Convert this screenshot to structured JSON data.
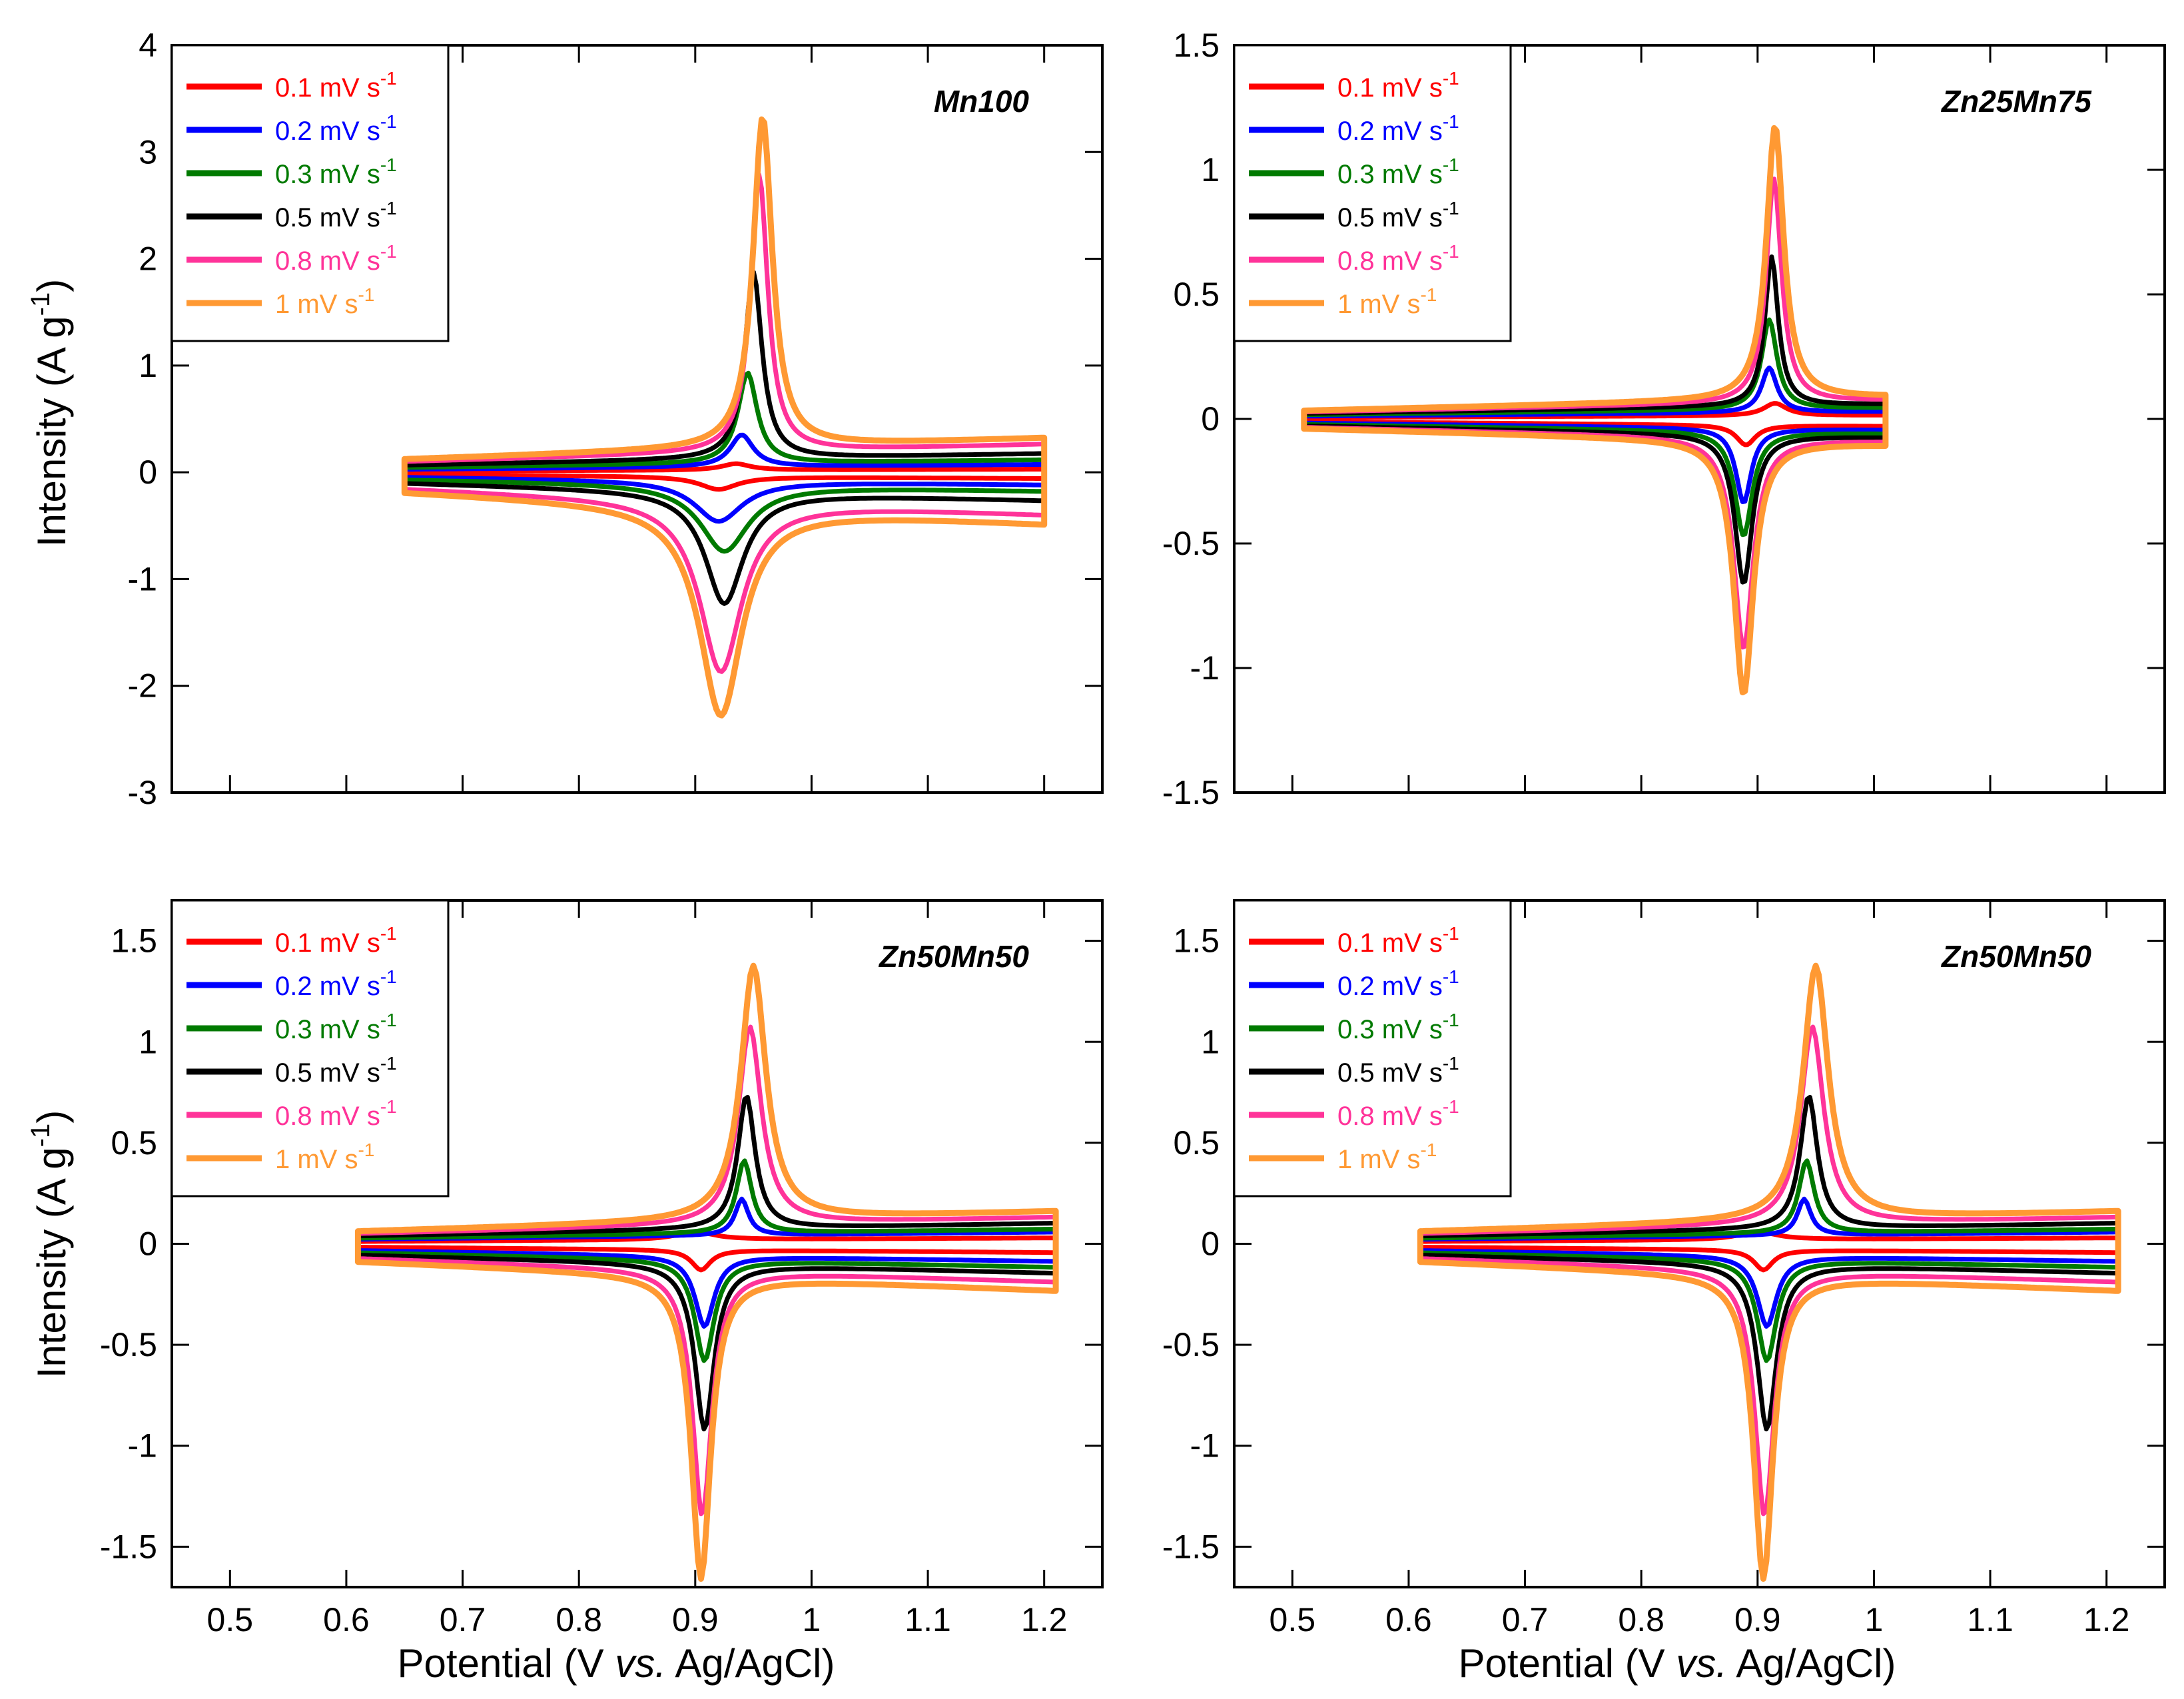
{
  "figure": {
    "xlabel_main": "Potential (V ",
    "xlabel_italic": "vs.",
    "xlabel_tail": " Ag/AgCl)",
    "ylabel_main": "Intensity (A g",
    "ylabel_sup": "-1",
    "ylabel_close": ")"
  },
  "legend_entries": [
    {
      "name": "0.1 mV s",
      "sup": "-1",
      "color": "#ff0000"
    },
    {
      "name": "0.2 mV s",
      "sup": "-1",
      "color": "#0000ff"
    },
    {
      "name": "0.3 mV s",
      "sup": "-1",
      "color": "#007a00"
    },
    {
      "name": "0.5 mV s",
      "sup": "-1",
      "color": "#000000"
    },
    {
      "name": "0.8 mV s",
      "sup": "-1",
      "color": "#ff3399"
    },
    {
      "name": "1 mV s",
      "sup": "-1",
      "color": "#ff9933"
    }
  ],
  "chart_data": [
    {
      "type": "line",
      "title": "Mn100",
      "xlabel": "",
      "ylabel": "Intensity (A g-1)",
      "xlim": [
        0.45,
        1.25
      ],
      "ylim": [
        -3,
        4
      ],
      "yticks": [
        -3,
        -2,
        -1,
        0,
        1,
        2,
        3,
        4
      ],
      "xticks": [
        0.5,
        0.6,
        0.7,
        0.8,
        0.9,
        1.0,
        1.1,
        1.2
      ],
      "legend": "top-left",
      "series": [
        {
          "name": "0.1 mV s-1",
          "xmin": 0.65,
          "xmax": 1.2,
          "anodic": {
            "center": 0.935,
            "height": 0.06,
            "width": 0.015
          },
          "cathodic": {
            "center": 0.92,
            "height": 0.12,
            "width": 0.02
          },
          "anodic_base": 0.02,
          "cathodic_base": -0.04
        },
        {
          "name": "0.2 mV s-1",
          "xmin": 0.65,
          "xmax": 1.2,
          "anodic": {
            "center": 0.94,
            "height": 0.3,
            "width": 0.012
          },
          "cathodic": {
            "center": 0.92,
            "height": 0.38,
            "width": 0.025
          },
          "anodic_base": 0.05,
          "cathodic_base": -0.08
        },
        {
          "name": "0.3 mV s-1",
          "xmin": 0.65,
          "xmax": 1.2,
          "anodic": {
            "center": 0.945,
            "height": 0.85,
            "width": 0.01
          },
          "cathodic": {
            "center": 0.925,
            "height": 0.62,
            "width": 0.025
          },
          "anodic_base": 0.08,
          "cathodic_base": -0.12
        },
        {
          "name": "0.5 mV s-1",
          "xmin": 0.65,
          "xmax": 1.2,
          "anodic": {
            "center": 0.95,
            "height": 1.75,
            "width": 0.009
          },
          "cathodic": {
            "center": 0.925,
            "height": 1.05,
            "width": 0.02
          },
          "anodic_base": 0.12,
          "cathodic_base": -0.18
        },
        {
          "name": "0.8 mV s-1",
          "xmin": 0.65,
          "xmax": 1.2,
          "anodic": {
            "center": 0.955,
            "height": 2.6,
            "width": 0.009
          },
          "cathodic": {
            "center": 0.922,
            "height": 1.6,
            "width": 0.022
          },
          "anodic_base": 0.18,
          "cathodic_base": -0.27
        },
        {
          "name": "1 mV s-1",
          "xmin": 0.65,
          "xmax": 1.2,
          "anodic": {
            "center": 0.958,
            "height": 3.1,
            "width": 0.01
          },
          "cathodic": {
            "center": 0.922,
            "height": 1.95,
            "width": 0.022
          },
          "anodic_base": 0.22,
          "cathodic_base": -0.33
        }
      ]
    },
    {
      "type": "line",
      "title": "Zn25Mn75",
      "xlabel": "",
      "ylabel": "",
      "xlim": [
        0.45,
        1.25
      ],
      "ylim": [
        -1.5,
        1.5
      ],
      "yticks": [
        -1.5,
        -1,
        -0.5,
        0,
        0.5,
        1,
        1.5
      ],
      "xticks": [
        0.5,
        0.6,
        0.7,
        0.8,
        0.9,
        1.0,
        1.1,
        1.2
      ],
      "legend": "top-left",
      "series": [
        {
          "name": "0.1 mV s-1",
          "xmin": 0.51,
          "xmax": 1.01,
          "anodic": {
            "center": 0.915,
            "height": 0.05,
            "width": 0.012
          },
          "cathodic": {
            "center": 0.89,
            "height": 0.08,
            "width": 0.01
          },
          "anodic_base": 0.01,
          "cathodic_base": -0.02
        },
        {
          "name": "0.2 mV s-1",
          "xmin": 0.51,
          "xmax": 1.01,
          "anodic": {
            "center": 0.91,
            "height": 0.18,
            "width": 0.008
          },
          "cathodic": {
            "center": 0.888,
            "height": 0.3,
            "width": 0.008
          },
          "anodic_base": 0.02,
          "cathodic_base": -0.03
        },
        {
          "name": "0.3 mV s-1",
          "xmin": 0.51,
          "xmax": 1.01,
          "anodic": {
            "center": 0.91,
            "height": 0.36,
            "width": 0.008
          },
          "cathodic": {
            "center": 0.888,
            "height": 0.42,
            "width": 0.009
          },
          "anodic_base": 0.03,
          "cathodic_base": -0.04
        },
        {
          "name": "0.5 mV s-1",
          "xmin": 0.51,
          "xmax": 1.01,
          "anodic": {
            "center": 0.912,
            "height": 0.6,
            "width": 0.007
          },
          "cathodic": {
            "center": 0.888,
            "height": 0.6,
            "width": 0.009
          },
          "anodic_base": 0.04,
          "cathodic_base": -0.05
        },
        {
          "name": "0.8 mV s-1",
          "xmin": 0.51,
          "xmax": 1.01,
          "anodic": {
            "center": 0.914,
            "height": 0.9,
            "width": 0.008
          },
          "cathodic": {
            "center": 0.888,
            "height": 0.85,
            "width": 0.01
          },
          "anodic_base": 0.05,
          "cathodic_base": -0.06
        },
        {
          "name": "1 mV s-1",
          "xmin": 0.51,
          "xmax": 1.01,
          "anodic": {
            "center": 0.915,
            "height": 1.1,
            "width": 0.009
          },
          "cathodic": {
            "center": 0.888,
            "height": 1.02,
            "width": 0.01
          },
          "anodic_base": 0.06,
          "cathodic_base": -0.07
        }
      ]
    },
    {
      "type": "line",
      "title": "Zn50Mn50",
      "xlabel": "Potential (V vs. Ag/AgCl)",
      "ylabel": "Intensity (A g-1)",
      "xlim": [
        0.45,
        1.25
      ],
      "ylim": [
        -1.7,
        1.7
      ],
      "yticks": [
        -1.5,
        -1,
        -0.5,
        0,
        0.5,
        1,
        1.5
      ],
      "xticks": [
        0.5,
        0.6,
        0.7,
        0.8,
        0.9,
        1.0,
        1.1,
        1.2
      ],
      "legend": "top-left",
      "series": [
        {
          "name": "0.1 mV s-1",
          "xmin": 0.61,
          "xmax": 1.21,
          "anodic": {
            "center": 0.9,
            "height": 0.04,
            "width": 0.02
          },
          "cathodic": {
            "center": 0.905,
            "height": 0.1,
            "width": 0.01
          },
          "anodic_base": 0.02,
          "cathodic_base": -0.03
        },
        {
          "name": "0.2 mV s-1",
          "xmin": 0.61,
          "xmax": 1.21,
          "anodic": {
            "center": 0.94,
            "height": 0.18,
            "width": 0.007
          },
          "cathodic": {
            "center": 0.908,
            "height": 0.35,
            "width": 0.01
          },
          "anodic_base": 0.04,
          "cathodic_base": -0.06
        },
        {
          "name": "0.3 mV s-1",
          "xmin": 0.61,
          "xmax": 1.21,
          "anodic": {
            "center": 0.942,
            "height": 0.36,
            "width": 0.008
          },
          "cathodic": {
            "center": 0.908,
            "height": 0.5,
            "width": 0.01
          },
          "anodic_base": 0.05,
          "cathodic_base": -0.08
        },
        {
          "name": "0.5 mV s-1",
          "xmin": 0.61,
          "xmax": 1.21,
          "anodic": {
            "center": 0.944,
            "height": 0.66,
            "width": 0.009
          },
          "cathodic": {
            "center": 0.908,
            "height": 0.82,
            "width": 0.01
          },
          "anodic_base": 0.07,
          "cathodic_base": -0.1
        },
        {
          "name": "0.8 mV s-1",
          "xmin": 0.61,
          "xmax": 1.21,
          "anodic": {
            "center": 0.947,
            "height": 0.98,
            "width": 0.012
          },
          "cathodic": {
            "center": 0.906,
            "height": 1.22,
            "width": 0.01
          },
          "anodic_base": 0.09,
          "cathodic_base": -0.13
        },
        {
          "name": "1 mV s-1",
          "xmin": 0.61,
          "xmax": 1.21,
          "anodic": {
            "center": 0.95,
            "height": 1.26,
            "width": 0.013
          },
          "cathodic": {
            "center": 0.905,
            "height": 1.5,
            "width": 0.01
          },
          "anodic_base": 0.11,
          "cathodic_base": -0.16
        }
      ]
    },
    {
      "type": "line",
      "title": "Zn50Mn50",
      "xlabel": "Potential (V vs. Ag/AgCl)",
      "ylabel": "",
      "xlim": [
        0.45,
        1.25
      ],
      "ylim": [
        -1.7,
        1.7
      ],
      "yticks": [
        -1.5,
        -1,
        -0.5,
        0,
        0.5,
        1,
        1.5
      ],
      "xticks": [
        0.5,
        0.6,
        0.7,
        0.8,
        0.9,
        1.0,
        1.1,
        1.2
      ],
      "legend": "top-left",
      "series": [
        {
          "name": "0.1 mV s-1",
          "xmin": 0.61,
          "xmax": 1.21,
          "anodic": {
            "center": 0.9,
            "height": 0.04,
            "width": 0.02
          },
          "cathodic": {
            "center": 0.905,
            "height": 0.1,
            "width": 0.01
          },
          "anodic_base": 0.02,
          "cathodic_base": -0.03
        },
        {
          "name": "0.2 mV s-1",
          "xmin": 0.61,
          "xmax": 1.21,
          "anodic": {
            "center": 0.94,
            "height": 0.18,
            "width": 0.007
          },
          "cathodic": {
            "center": 0.908,
            "height": 0.35,
            "width": 0.01
          },
          "anodic_base": 0.04,
          "cathodic_base": -0.06
        },
        {
          "name": "0.3 mV s-1",
          "xmin": 0.61,
          "xmax": 1.21,
          "anodic": {
            "center": 0.942,
            "height": 0.36,
            "width": 0.008
          },
          "cathodic": {
            "center": 0.908,
            "height": 0.5,
            "width": 0.01
          },
          "anodic_base": 0.05,
          "cathodic_base": -0.08
        },
        {
          "name": "0.5 mV s-1",
          "xmin": 0.61,
          "xmax": 1.21,
          "anodic": {
            "center": 0.944,
            "height": 0.66,
            "width": 0.009
          },
          "cathodic": {
            "center": 0.908,
            "height": 0.82,
            "width": 0.01
          },
          "anodic_base": 0.07,
          "cathodic_base": -0.1
        },
        {
          "name": "0.8 mV s-1",
          "xmin": 0.61,
          "xmax": 1.21,
          "anodic": {
            "center": 0.947,
            "height": 0.98,
            "width": 0.012
          },
          "cathodic": {
            "center": 0.906,
            "height": 1.22,
            "width": 0.01
          },
          "anodic_base": 0.09,
          "cathodic_base": -0.13
        },
        {
          "name": "1 mV s-1",
          "xmin": 0.61,
          "xmax": 1.21,
          "anodic": {
            "center": 0.95,
            "height": 1.26,
            "width": 0.013
          },
          "cathodic": {
            "center": 0.905,
            "height": 1.5,
            "width": 0.01
          },
          "anodic_base": 0.11,
          "cathodic_base": -0.16
        }
      ]
    }
  ]
}
